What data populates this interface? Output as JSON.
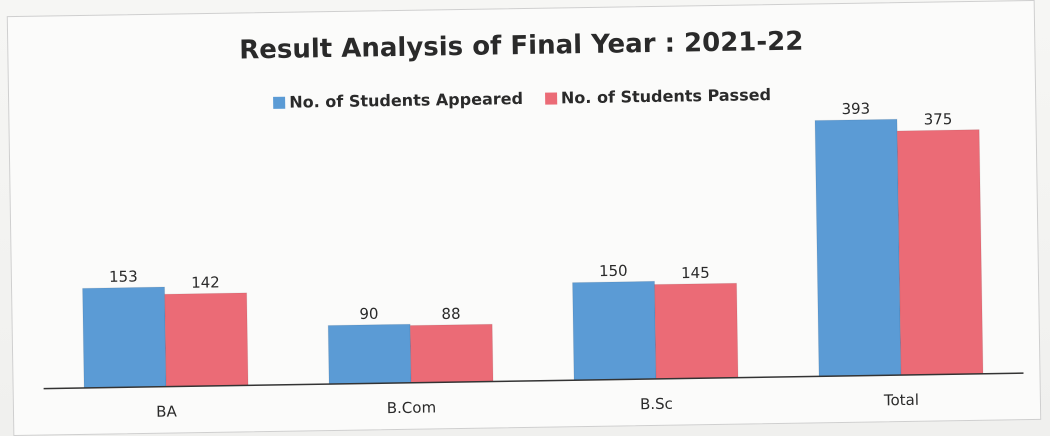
{
  "colors": {
    "appeared": "#5b9bd5",
    "passed": "#eb6b76",
    "axis": "#333333",
    "text": "#2a2a2a"
  },
  "chart_data": {
    "type": "bar",
    "title": "Result Analysis of Final Year : 2021-22",
    "categories": [
      "BA",
      "B.Com",
      "B.Sc",
      "Total"
    ],
    "series": [
      {
        "name": "No. of Students Appeared",
        "values": [
          153,
          90,
          150,
          393
        ]
      },
      {
        "name": "No. of Students Passed",
        "values": [
          142,
          88,
          145,
          375
        ]
      }
    ],
    "ylim": [
      0,
      430
    ],
    "grid": false,
    "legend_position": "top-center",
    "data_labels": true
  }
}
